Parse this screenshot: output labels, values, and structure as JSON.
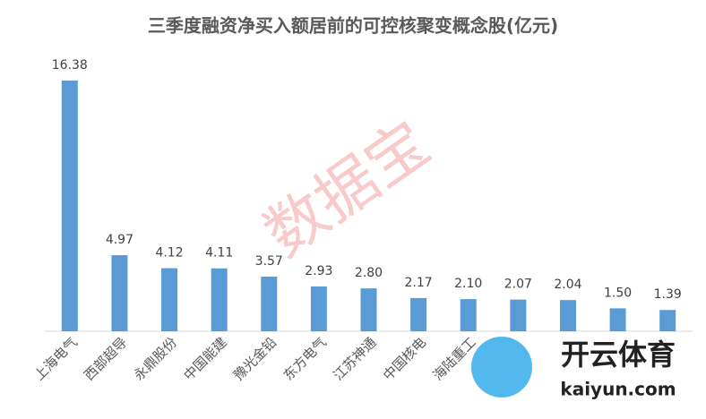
{
  "chart_data": {
    "type": "bar",
    "title": "三季度融资净买入额居前的可控核聚变概念股(亿元)",
    "categories": [
      "上海电气",
      "西部超导",
      "永鼎股份",
      "中国能建",
      "豫光金铅",
      "东方电气",
      "江苏神通",
      "中国核电",
      "海陆重工",
      null,
      null,
      null,
      null
    ],
    "values": [
      16.38,
      4.97,
      4.12,
      4.11,
      3.57,
      2.93,
      2.8,
      2.17,
      2.1,
      2.07,
      2.04,
      1.5,
      1.39
    ],
    "value_labels": [
      "16.38",
      "4.97",
      "4.12",
      "4.11",
      "3.57",
      "2.93",
      "2.80",
      "2.17",
      "2.10",
      "2.07",
      "2.04",
      "1.50",
      "1.39"
    ],
    "color": "#5b9bd5",
    "watermarks": [
      "数据宝",
      "开云体育",
      "kaiyun.com"
    ]
  }
}
